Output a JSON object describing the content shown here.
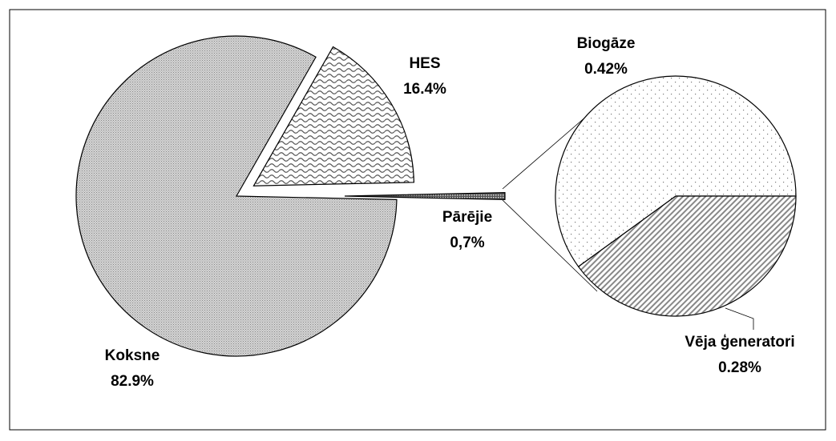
{
  "chart_data": [
    {
      "type": "pie",
      "categories": [
        "Koksne",
        "HES",
        "Pārējie"
      ],
      "values": [
        82.9,
        16.4,
        0.7
      ],
      "value_labels": [
        "82.9%",
        "16.4%",
        "0,7%"
      ]
    },
    {
      "type": "pie",
      "categories": [
        "Biogāze",
        "Vēja ģeneratori"
      ],
      "values": [
        0.42,
        0.28
      ],
      "value_labels": [
        "0.42%",
        "0.28%"
      ]
    }
  ]
}
